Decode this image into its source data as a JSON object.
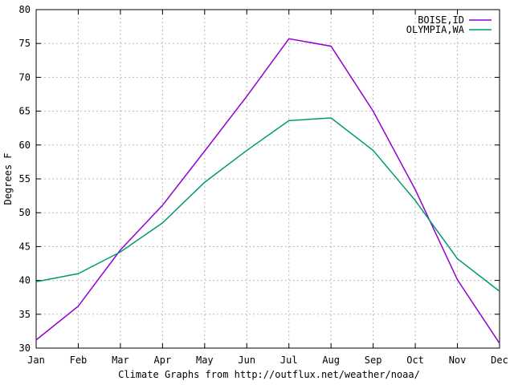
{
  "chart_data": {
    "type": "line",
    "title": "",
    "categories": [
      "Jan",
      "Feb",
      "Mar",
      "Apr",
      "May",
      "Jun",
      "Jul",
      "Aug",
      "Sep",
      "Oct",
      "Nov",
      "Dec"
    ],
    "series": [
      {
        "name": "BOISE,ID",
        "color": "#9400d3",
        "values": [
          31.2,
          36.2,
          44.5,
          51.1,
          59.1,
          67.2,
          75.7,
          74.6,
          65.0,
          53.4,
          40.1,
          30.7
        ]
      },
      {
        "name": "OLYMPIA,WA",
        "color": "#009977",
        "values": [
          39.8,
          41.0,
          44.2,
          48.5,
          54.5,
          59.2,
          63.6,
          64.0,
          59.2,
          51.8,
          43.2,
          38.4
        ]
      }
    ],
    "xlabel": "Climate Graphs from http://outflux.net/weather/noaa/",
    "ylabel": "Degrees F",
    "ylim": [
      30,
      80
    ],
    "ytick_step": 5,
    "yticks": [
      "30",
      "35",
      "40",
      "45",
      "50",
      "55",
      "60",
      "65",
      "70",
      "75",
      "80"
    ],
    "grid": true,
    "legend_position": "top-right",
    "colors": {
      "background": "#ffffff",
      "border": "#000000",
      "gridline": "#b8b8b8",
      "text": "#000000"
    }
  }
}
